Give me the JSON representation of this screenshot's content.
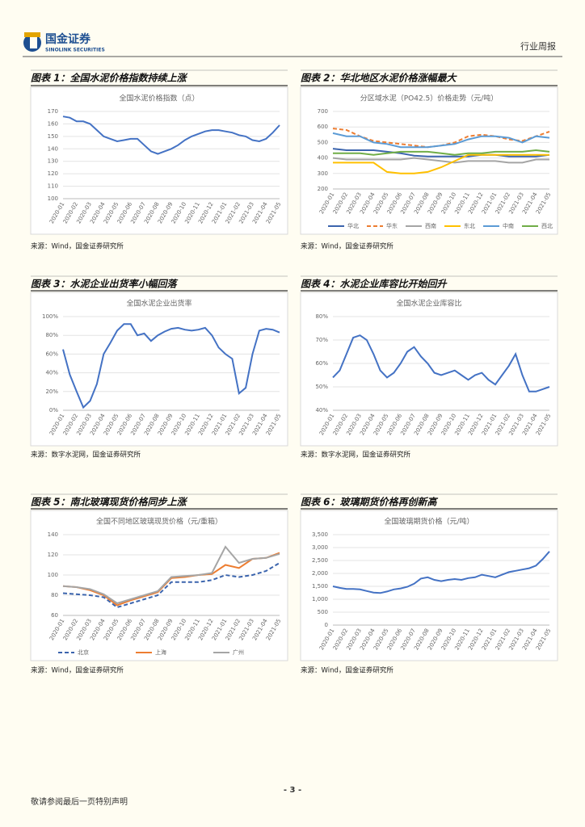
{
  "header": {
    "logo_cn": "国金证券",
    "logo_en": "SINOLINK SECURITIES",
    "report_type": "行业周报"
  },
  "chart_data": [
    {
      "type": "line",
      "caption": "图表 1：全国水泥价格指数持续上涨",
      "source": "来源：Wind，国金证券研究所",
      "title": "全国水泥价格指数（点）",
      "categories": [
        "2020-01",
        null,
        "2020-02",
        null,
        "2020-03",
        null,
        "2020-04",
        null,
        "2020-05",
        null,
        "2020-06",
        null,
        "2020-07",
        null,
        "2020-08",
        null,
        "2020-09",
        null,
        "2020-10",
        null,
        "2020-11",
        null,
        "2020-12",
        null,
        "2021-01",
        null,
        "2021-02",
        null,
        "2021-03",
        null,
        "2021-04",
        null,
        "2021-05"
      ],
      "series": [
        {
          "color": "#4472c4",
          "values": [
            166,
            165,
            162,
            162,
            160,
            155,
            150,
            148,
            146,
            147,
            148,
            148,
            143,
            138,
            136,
            138,
            140,
            143,
            147,
            150,
            152,
            154,
            155,
            155,
            154,
            153,
            151,
            150,
            147,
            146,
            148,
            153,
            159
          ]
        }
      ],
      "ylim": [
        100,
        170
      ],
      "yticks": [
        100,
        110,
        120,
        130,
        140,
        150,
        160,
        170
      ],
      "grid": true
    },
    {
      "type": "line",
      "caption": "图表 2：华北地区水泥价格涨幅最大",
      "source": "来源：Wind，国金证券研究所",
      "title": "分区域水泥（PO42.5）价格走势（元/吨）",
      "categories": [
        "2020-01",
        "2020-02",
        "2020-03",
        "2020-04",
        "2020-05",
        "2020-06",
        "2020-07",
        "2020-08",
        "2020-09",
        "2020-10",
        "2020-11",
        "2020-12",
        "2021-01",
        "2021-02",
        "2021-03",
        "2021-04",
        "2021-05"
      ],
      "series": [
        {
          "name": "华北",
          "color": "#3b64ad",
          "values": [
            460,
            450,
            450,
            450,
            440,
            430,
            415,
            410,
            410,
            410,
            410,
            420,
            420,
            410,
            410,
            410,
            420
          ]
        },
        {
          "name": "华东",
          "color": "#ed7d31",
          "style": "dashed",
          "values": [
            590,
            580,
            540,
            510,
            500,
            490,
            480,
            470,
            480,
            500,
            540,
            550,
            540,
            520,
            510,
            540,
            570
          ]
        },
        {
          "name": "西南",
          "color": "#a5a5a5",
          "values": [
            400,
            390,
            390,
            390,
            390,
            390,
            400,
            390,
            380,
            370,
            380,
            380,
            380,
            370,
            370,
            390,
            390
          ]
        },
        {
          "name": "东北",
          "color": "#ffc000",
          "values": [
            370,
            370,
            370,
            370,
            310,
            300,
            300,
            310,
            340,
            380,
            420,
            420,
            420,
            420,
            420,
            420,
            420
          ]
        },
        {
          "name": "中南",
          "color": "#5b9bd5",
          "values": [
            560,
            540,
            540,
            500,
            490,
            470,
            470,
            470,
            480,
            490,
            520,
            540,
            540,
            530,
            500,
            540,
            530
          ]
        },
        {
          "name": "西北",
          "color": "#70ad47",
          "values": [
            430,
            430,
            430,
            420,
            430,
            440,
            440,
            440,
            430,
            420,
            430,
            430,
            440,
            440,
            440,
            450,
            440
          ]
        }
      ],
      "ylim": [
        200,
        700
      ],
      "yticks": [
        200,
        300,
        400,
        500,
        600,
        700
      ],
      "grid": true,
      "legend": "bottom"
    },
    {
      "type": "line",
      "caption": "图表 3：水泥企业出货率小幅回落",
      "source": "来源：数字水泥网，国金证券研究所",
      "title": "全国水泥企业出货率",
      "categories": [
        "2020-01",
        null,
        "2020-02",
        null,
        "2020-03",
        null,
        "2020-04",
        null,
        "2020-05",
        null,
        "2020-06",
        null,
        "2020-07",
        null,
        "2020-08",
        null,
        "2020-09",
        null,
        "2020-10",
        null,
        "2020-11",
        null,
        "2020-12",
        null,
        "2021-01",
        null,
        "2021-02",
        null,
        "2021-03",
        null,
        "2021-04",
        null,
        "2021-05"
      ],
      "series": [
        {
          "color": "#4472c4",
          "values": [
            65,
            38,
            20,
            3,
            10,
            28,
            60,
            72,
            85,
            92,
            92,
            80,
            82,
            74,
            80,
            84,
            87,
            88,
            86,
            85,
            86,
            88,
            80,
            67,
            60,
            55,
            18,
            24,
            60,
            85,
            87,
            86,
            83
          ]
        }
      ],
      "ylim": [
        0,
        100
      ],
      "yticks": [
        {
          "value": 0,
          "label": "0%"
        },
        {
          "value": 20,
          "label": "20%"
        },
        {
          "value": 40,
          "label": "40%"
        },
        {
          "value": 60,
          "label": "60%"
        },
        {
          "value": 80,
          "label": "80%"
        },
        {
          "value": 100,
          "label": "100%"
        }
      ],
      "grid": true
    },
    {
      "type": "line",
      "caption": "图表 4：水泥企业库容比开始回升",
      "source": "来源：数字水泥网，国金证券研究所",
      "title": "全国水泥企业库容比",
      "categories": [
        "2020-01",
        null,
        "2020-02",
        null,
        "2020-03",
        null,
        "2020-04",
        null,
        "2020-05",
        null,
        "2020-06",
        null,
        "2020-07",
        null,
        "2020-08",
        null,
        "2020-09",
        null,
        "2020-10",
        null,
        "2020-11",
        null,
        "2020-12",
        null,
        "2021-01",
        null,
        "2021-02",
        null,
        "2021-03",
        null,
        "2021-04",
        null,
        "2021-05"
      ],
      "series": [
        {
          "color": "#4472c4",
          "values": [
            54,
            57,
            64,
            71,
            72,
            70,
            64,
            57,
            54,
            56,
            60,
            65,
            67,
            63,
            60,
            56,
            55,
            56,
            57,
            55,
            53,
            55,
            56,
            53,
            51,
            55,
            59,
            64,
            55,
            48,
            48,
            49,
            50
          ]
        }
      ],
      "ylim": [
        40,
        80
      ],
      "yticks": [
        {
          "value": 40,
          "label": "40%"
        },
        {
          "value": 50,
          "label": "50%"
        },
        {
          "value": 60,
          "label": "60%"
        },
        {
          "value": 70,
          "label": "70%"
        },
        {
          "value": 80,
          "label": "80%"
        }
      ],
      "grid": true
    },
    {
      "type": "line",
      "caption": "图表 5：南北玻璃现货价格同步上涨",
      "source": "来源：Wind，国金证券研究所",
      "title": "全国不同地区玻璃现货价格（元/重箱）",
      "categories": [
        "2020-01",
        "2020-02",
        "2020-03",
        "2020-04",
        "2020-05",
        "2020-06",
        "2020-07",
        "2020-08",
        "2020-09",
        "2020-10",
        "2020-11",
        "2020-12",
        "2021-01",
        "2021-02",
        "2021-03",
        "2021-04",
        "2021-05"
      ],
      "series": [
        {
          "name": "北京",
          "color": "#3b64ad",
          "style": "dashed",
          "values": [
            82,
            81,
            80,
            78,
            68,
            72,
            76,
            80,
            93,
            93,
            93,
            95,
            100,
            98,
            100,
            104,
            112
          ]
        },
        {
          "name": "上海",
          "color": "#ed7d31",
          "values": [
            89,
            88,
            85,
            80,
            70,
            75,
            79,
            83,
            97,
            98,
            100,
            101,
            110,
            107,
            116,
            117,
            122
          ]
        },
        {
          "name": "广州",
          "color": "#a5a5a5",
          "values": [
            89,
            88,
            86,
            81,
            72,
            76,
            80,
            84,
            98,
            99,
            100,
            102,
            128,
            112,
            116,
            117,
            121
          ]
        }
      ],
      "ylim": [
        60,
        140
      ],
      "yticks": [
        60,
        80,
        100,
        120,
        140
      ],
      "grid": true,
      "legend": "bottom"
    },
    {
      "type": "line",
      "caption": "图表 6：玻璃期货价格再创新高",
      "source": "来源：Wind，国金证券研究所",
      "title": "全国玻璃期货价格（元/吨）",
      "categories": [
        "2020-01",
        null,
        "2020-02",
        null,
        "2020-03",
        null,
        "2020-04",
        null,
        "2020-05",
        null,
        "2020-06",
        null,
        "2020-07",
        null,
        "2020-08",
        null,
        "2020-09",
        null,
        "2020-10",
        null,
        "2020-11",
        null,
        "2020-12",
        null,
        "2021-01",
        null,
        "2021-02",
        null,
        "2021-03",
        null,
        "2021-04",
        null,
        "2021-05"
      ],
      "series": [
        {
          "color": "#4472c4",
          "values": [
            1500,
            1440,
            1400,
            1400,
            1380,
            1320,
            1260,
            1240,
            1300,
            1380,
            1420,
            1480,
            1600,
            1800,
            1850,
            1750,
            1700,
            1750,
            1780,
            1750,
            1820,
            1850,
            1950,
            1900,
            1850,
            1950,
            2050,
            2100,
            2150,
            2200,
            2300,
            2550,
            2850
          ]
        }
      ],
      "ylim": [
        0,
        3500
      ],
      "yticks": [
        0,
        {
          "value": 500,
          "label": "500"
        },
        {
          "value": 1000,
          "label": "1,000"
        },
        {
          "value": 1500,
          "label": "1,500"
        },
        {
          "value": 2000,
          "label": "2,000"
        },
        {
          "value": 2500,
          "label": "2,500"
        },
        {
          "value": 3000,
          "label": "3,000"
        },
        {
          "value": 3500,
          "label": "3,500"
        }
      ],
      "grid": true
    }
  ],
  "footer": {
    "page": "- 3 -",
    "disclaimer": "敬请参阅最后一页特别声明"
  }
}
